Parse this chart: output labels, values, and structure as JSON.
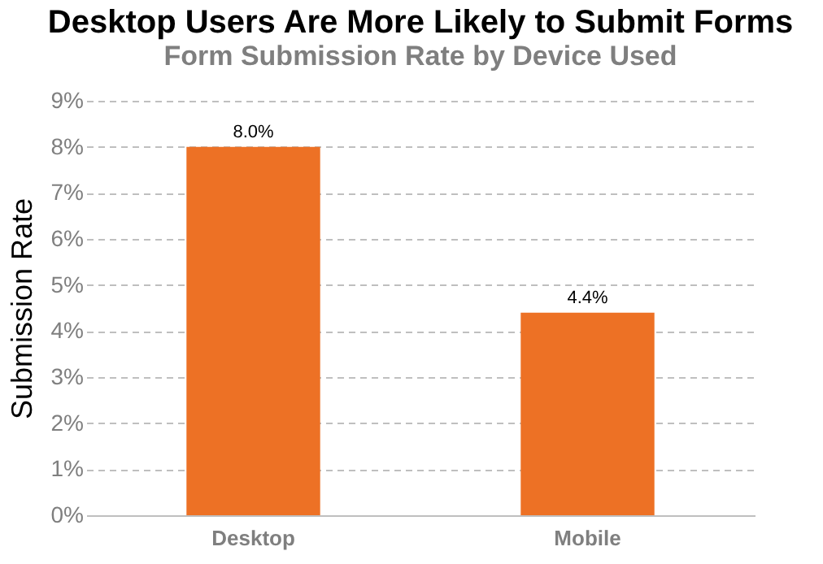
{
  "chart_data": {
    "type": "bar",
    "title": "Desktop Users Are More Likely to Submit Forms",
    "subtitle": "Form Submission Rate by Device Used",
    "ylabel": "Submission Rate",
    "categories": [
      "Desktop",
      "Mobile"
    ],
    "values": [
      8.0,
      4.4
    ],
    "value_labels": [
      "8.0%",
      "4.4%"
    ],
    "color": "#ed7125",
    "ylim": [
      0,
      9
    ],
    "yticks": [
      {
        "value": 0,
        "label": "0%"
      },
      {
        "value": 1,
        "label": "1%"
      },
      {
        "value": 2,
        "label": "2%"
      },
      {
        "value": 3,
        "label": "3%"
      },
      {
        "value": 4,
        "label": "4%"
      },
      {
        "value": 5,
        "label": "5%"
      },
      {
        "value": 6,
        "label": "6%"
      },
      {
        "value": 7,
        "label": "7%"
      },
      {
        "value": 8,
        "label": "8%"
      },
      {
        "value": 9,
        "label": "9%"
      }
    ],
    "grid": "y"
  }
}
